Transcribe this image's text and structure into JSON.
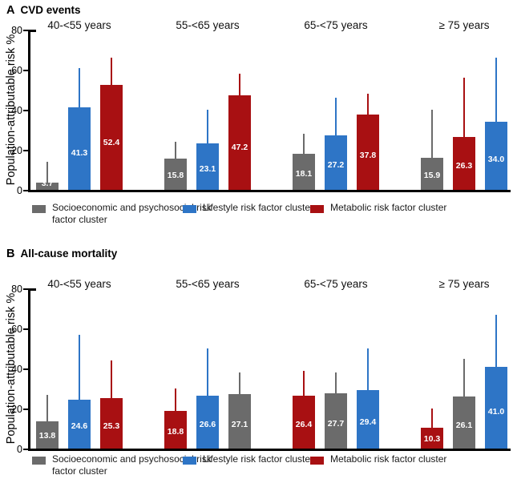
{
  "colors": {
    "gray": "#6b6b6b",
    "blue": "#2e75c6",
    "red": "#a81012",
    "axis": "#000000",
    "bar_label": "#ffffff"
  },
  "legend": {
    "items": [
      {
        "label": "Socioeconomic and psychosocial risk factor cluster",
        "color_key": "gray"
      },
      {
        "label": "Lifestyle risk factor cluster",
        "color_key": "blue"
      },
      {
        "label": "Metabolic risk factor cluster",
        "color_key": "red"
      }
    ]
  },
  "chart_data": [
    {
      "type": "bar",
      "panel_letter": "A",
      "title": "CVD events",
      "ylabel": "Population-attributable risk %",
      "ylim": [
        0,
        80
      ],
      "yticks": [
        0,
        20,
        40,
        60,
        80
      ],
      "categories": [
        "40-<55 years",
        "55-<65 years",
        "65-<75 years",
        "≥ 75 years"
      ],
      "groups": [
        {
          "category": "40-<55 years",
          "bars": [
            {
              "series": "Socioeconomic and psychosocial risk factor cluster",
              "color_key": "gray",
              "value": 3.7,
              "label": "3.7",
              "ci_upper": 14
            },
            {
              "series": "Lifestyle risk factor cluster",
              "color_key": "blue",
              "value": 41.3,
              "label": "41.3",
              "ci_upper": 61
            },
            {
              "series": "Metabolic risk factor cluster",
              "color_key": "red",
              "value": 52.4,
              "label": "52.4",
              "ci_upper": 66
            }
          ]
        },
        {
          "category": "55-<65 years",
          "bars": [
            {
              "series": "Socioeconomic and psychosocial risk factor cluster",
              "color_key": "gray",
              "value": 15.8,
              "label": "15.8",
              "ci_upper": 24
            },
            {
              "series": "Lifestyle risk factor cluster",
              "color_key": "blue",
              "value": 23.1,
              "label": "23.1",
              "ci_upper": 40
            },
            {
              "series": "Metabolic risk factor cluster",
              "color_key": "red",
              "value": 47.2,
              "label": "47.2",
              "ci_upper": 58
            }
          ]
        },
        {
          "category": "65-<75 years",
          "bars": [
            {
              "series": "Socioeconomic and psychosocial risk factor cluster",
              "color_key": "gray",
              "value": 18.1,
              "label": "18.1",
              "ci_upper": 28
            },
            {
              "series": "Lifestyle risk factor cluster",
              "color_key": "blue",
              "value": 27.2,
              "label": "27.2",
              "ci_upper": 46
            },
            {
              "series": "Metabolic risk factor cluster",
              "color_key": "red",
              "value": 37.8,
              "label": "37.8",
              "ci_upper": 48
            }
          ]
        },
        {
          "category": "≥ 75 years",
          "bars": [
            {
              "series": "Socioeconomic and psychosocial risk factor cluster",
              "color_key": "gray",
              "value": 15.9,
              "label": "15.9",
              "ci_upper": 40
            },
            {
              "series": "Metabolic risk factor cluster",
              "color_key": "red",
              "value": 26.3,
              "label": "26.3",
              "ci_upper": 56
            },
            {
              "series": "Lifestyle risk factor cluster",
              "color_key": "blue",
              "value": 34.0,
              "label": "34.0",
              "ci_upper": 66
            }
          ]
        }
      ]
    },
    {
      "type": "bar",
      "panel_letter": "B",
      "title": "All-cause mortality",
      "ylabel": "Population-attributable risk %",
      "ylim": [
        0,
        80
      ],
      "yticks": [
        0,
        20,
        40,
        60,
        80
      ],
      "categories": [
        "40-<55 years",
        "55-<65 years",
        "65-<75 years",
        "≥ 75 years"
      ],
      "groups": [
        {
          "category": "40-<55 years",
          "bars": [
            {
              "series": "Socioeconomic and psychosocial risk factor cluster",
              "color_key": "gray",
              "value": 13.8,
              "label": "13.8",
              "ci_upper": 27
            },
            {
              "series": "Lifestyle risk factor cluster",
              "color_key": "blue",
              "value": 24.6,
              "label": "24.6",
              "ci_upper": 57
            },
            {
              "series": "Metabolic risk factor cluster",
              "color_key": "red",
              "value": 25.3,
              "label": "25.3",
              "ci_upper": 44
            }
          ]
        },
        {
          "category": "55-<65 years",
          "bars": [
            {
              "series": "Metabolic risk factor cluster",
              "color_key": "red",
              "value": 18.8,
              "label": "18.8",
              "ci_upper": 30
            },
            {
              "series": "Lifestyle risk factor cluster",
              "color_key": "blue",
              "value": 26.6,
              "label": "26.6",
              "ci_upper": 50
            },
            {
              "series": "Socioeconomic and psychosocial risk factor cluster",
              "color_key": "gray",
              "value": 27.1,
              "label": "27.1",
              "ci_upper": 38
            }
          ]
        },
        {
          "category": "65-<75 years",
          "bars": [
            {
              "series": "Metabolic risk factor cluster",
              "color_key": "red",
              "value": 26.4,
              "label": "26.4",
              "ci_upper": 39
            },
            {
              "series": "Socioeconomic and psychosocial risk factor cluster",
              "color_key": "gray",
              "value": 27.7,
              "label": "27.7",
              "ci_upper": 38
            },
            {
              "series": "Lifestyle risk factor cluster",
              "color_key": "blue",
              "value": 29.4,
              "label": "29.4",
              "ci_upper": 50
            }
          ]
        },
        {
          "category": "≥ 75 years",
          "bars": [
            {
              "series": "Metabolic risk factor cluster",
              "color_key": "red",
              "value": 10.3,
              "label": "10.3",
              "ci_upper": 20
            },
            {
              "series": "Socioeconomic and psychosocial risk factor cluster",
              "color_key": "gray",
              "value": 26.1,
              "label": "26.1",
              "ci_upper": 45
            },
            {
              "series": "Lifestyle risk factor cluster",
              "color_key": "blue",
              "value": 41.0,
              "label": "41.0",
              "ci_upper": 67
            }
          ]
        }
      ]
    }
  ]
}
